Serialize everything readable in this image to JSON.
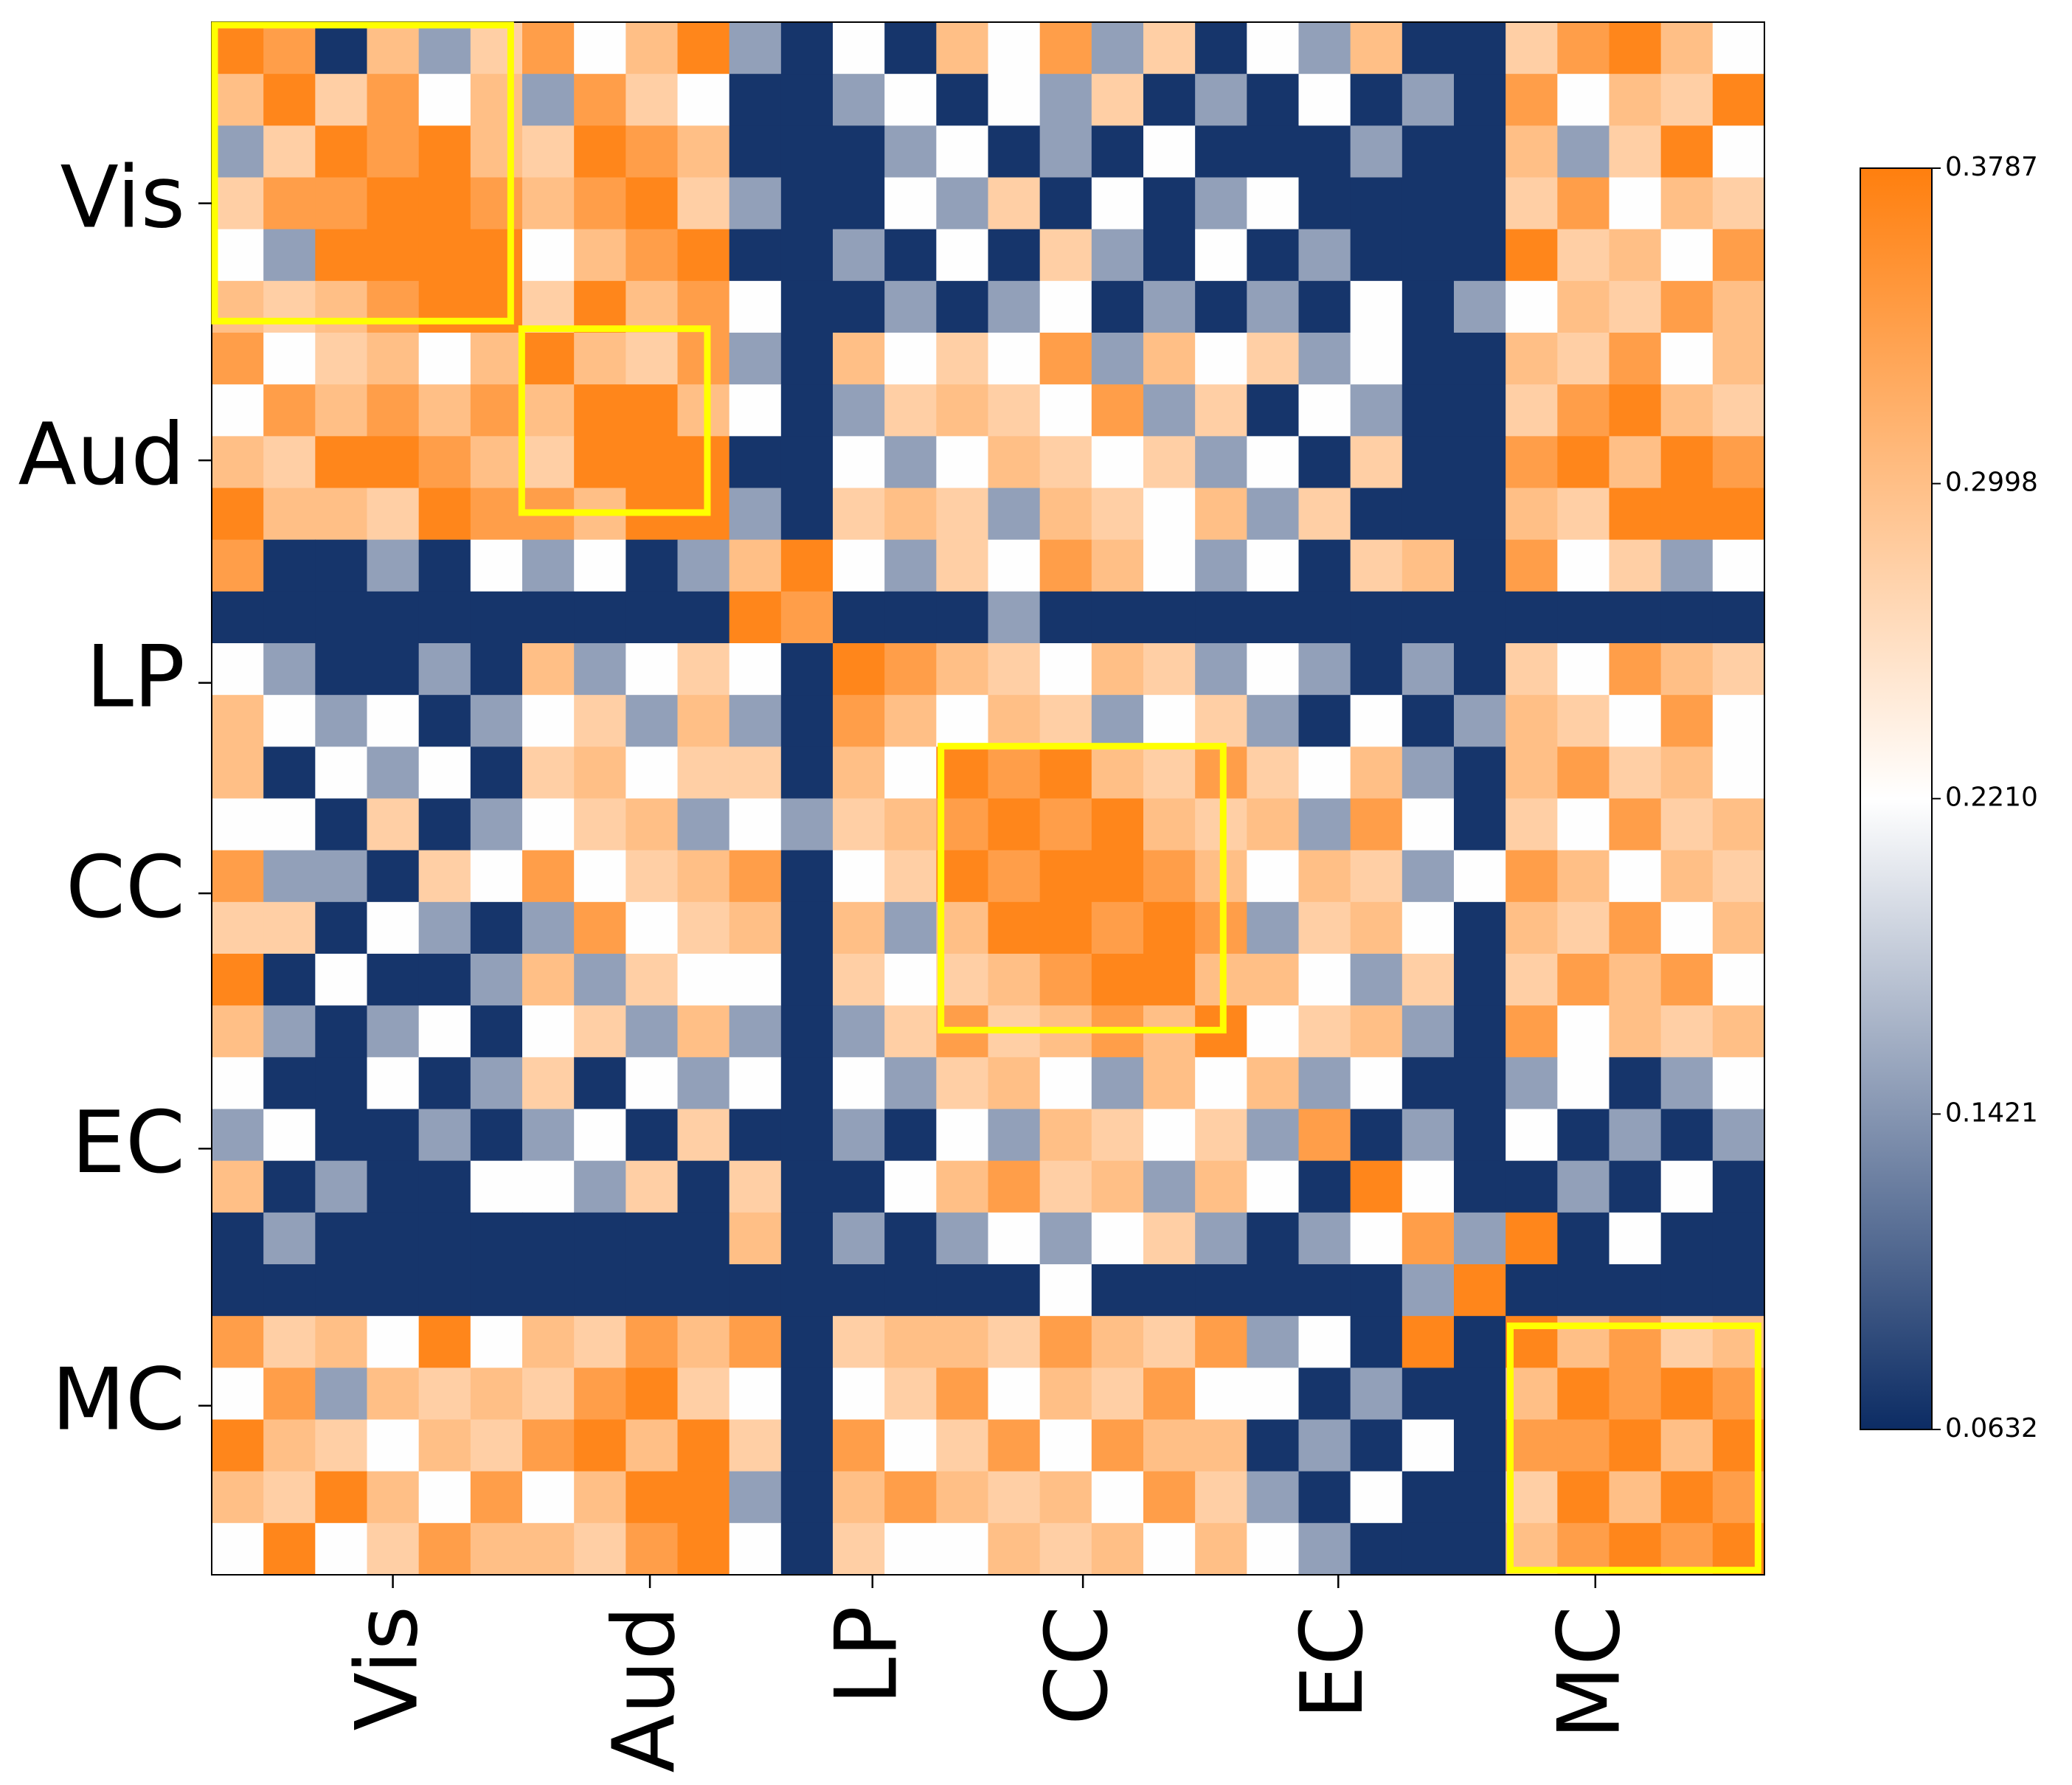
{
  "chart_data": {
    "type": "heatmap",
    "xlim": [
      0,
      90
    ],
    "ylim": [
      0,
      90
    ],
    "xticks": [
      {
        "value": 10.5,
        "label": "Vis"
      },
      {
        "value": 25.4,
        "label": "Aud"
      },
      {
        "value": 38.3,
        "label": "LP"
      },
      {
        "value": 50.5,
        "label": "CC"
      },
      {
        "value": 65.3,
        "label": "EC"
      },
      {
        "value": 80.2,
        "label": "MC"
      }
    ],
    "yticks": [
      {
        "value": 10.5,
        "label": "Vis"
      },
      {
        "value": 25.4,
        "label": "Aud"
      },
      {
        "value": 38.3,
        "label": "LP"
      },
      {
        "value": 50.5,
        "label": "CC"
      },
      {
        "value": 65.3,
        "label": "EC"
      },
      {
        "value": 80.2,
        "label": "MC"
      }
    ],
    "colorbar": {
      "lim": [
        0.0632,
        0.3787
      ],
      "ticks": [
        0.0632,
        0.1421,
        {
          "value": 0.221,
          "label": "0.2210"
        },
        0.2998,
        0.3787
      ],
      "colors": [
        "#0c2c64",
        "#ffffff",
        "#ff7f0e"
      ]
    },
    "box_color": "#ffff00",
    "boxes": [
      {
        "x": [
          0,
          17.5
        ],
        "y": [
          0,
          17.5
        ]
      },
      {
        "x": [
          17.8,
          28.9
        ],
        "y": [
          17.6,
          28.6
        ]
      },
      {
        "x": [
          42.1,
          58.8
        ],
        "y": [
          41.8,
          58.6
        ]
      },
      {
        "x": [
          75.1,
          89.8
        ],
        "y": [
          75.4,
          89.9
        ]
      }
    ],
    "z": [
      [
        0.37,
        0.34,
        0.07,
        0.3,
        0.15,
        0.28,
        0.34,
        0.22,
        0.3,
        0.37,
        0.15,
        0.07,
        0.22,
        0.07,
        0.3,
        0.22,
        0.34,
        0.15,
        0.28,
        0.07,
        0.22,
        0.15,
        0.3,
        0.07,
        0.07,
        0.28,
        0.34,
        0.37,
        0.3,
        0.22
      ],
      [
        0.3,
        0.37,
        0.28,
        0.34,
        0.22,
        0.3,
        0.15,
        0.34,
        0.28,
        0.22,
        0.07,
        0.07,
        0.15,
        0.22,
        0.07,
        0.22,
        0.15,
        0.28,
        0.07,
        0.15,
        0.07,
        0.22,
        0.07,
        0.15,
        0.07,
        0.34,
        0.22,
        0.3,
        0.28,
        0.37
      ],
      [
        0.15,
        0.28,
        0.37,
        0.34,
        0.37,
        0.3,
        0.28,
        0.37,
        0.34,
        0.3,
        0.07,
        0.07,
        0.07,
        0.15,
        0.22,
        0.07,
        0.15,
        0.07,
        0.22,
        0.07,
        0.07,
        0.07,
        0.15,
        0.07,
        0.07,
        0.3,
        0.15,
        0.28,
        0.37,
        0.22
      ],
      [
        0.28,
        0.34,
        0.34,
        0.37,
        0.37,
        0.34,
        0.3,
        0.34,
        0.37,
        0.28,
        0.15,
        0.07,
        0.07,
        0.22,
        0.15,
        0.28,
        0.07,
        0.22,
        0.07,
        0.15,
        0.22,
        0.07,
        0.07,
        0.07,
        0.07,
        0.28,
        0.34,
        0.22,
        0.3,
        0.28
      ],
      [
        0.22,
        0.15,
        0.37,
        0.37,
        0.37,
        0.37,
        0.22,
        0.3,
        0.34,
        0.37,
        0.07,
        0.07,
        0.15,
        0.07,
        0.22,
        0.07,
        0.28,
        0.15,
        0.07,
        0.22,
        0.07,
        0.15,
        0.07,
        0.07,
        0.07,
        0.37,
        0.28,
        0.3,
        0.22,
        0.34
      ],
      [
        0.3,
        0.28,
        0.3,
        0.34,
        0.37,
        0.37,
        0.28,
        0.37,
        0.3,
        0.34,
        0.22,
        0.07,
        0.07,
        0.15,
        0.07,
        0.15,
        0.22,
        0.07,
        0.15,
        0.07,
        0.15,
        0.07,
        0.22,
        0.07,
        0.15,
        0.22,
        0.3,
        0.28,
        0.34,
        0.3
      ],
      [
        0.34,
        0.22,
        0.28,
        0.3,
        0.22,
        0.3,
        0.37,
        0.3,
        0.28,
        0.34,
        0.15,
        0.07,
        0.3,
        0.22,
        0.28,
        0.22,
        0.34,
        0.15,
        0.3,
        0.22,
        0.28,
        0.15,
        0.22,
        0.07,
        0.07,
        0.3,
        0.28,
        0.34,
        0.22,
        0.3
      ],
      [
        0.22,
        0.34,
        0.3,
        0.34,
        0.3,
        0.34,
        0.3,
        0.37,
        0.37,
        0.3,
        0.22,
        0.07,
        0.15,
        0.28,
        0.3,
        0.28,
        0.22,
        0.34,
        0.15,
        0.28,
        0.07,
        0.22,
        0.15,
        0.07,
        0.07,
        0.28,
        0.34,
        0.37,
        0.3,
        0.28
      ],
      [
        0.3,
        0.28,
        0.37,
        0.37,
        0.34,
        0.3,
        0.28,
        0.37,
        0.37,
        0.37,
        0.07,
        0.07,
        0.22,
        0.15,
        0.22,
        0.3,
        0.28,
        0.22,
        0.28,
        0.15,
        0.22,
        0.07,
        0.28,
        0.07,
        0.07,
        0.34,
        0.37,
        0.3,
        0.37,
        0.34
      ],
      [
        0.37,
        0.3,
        0.3,
        0.28,
        0.37,
        0.34,
        0.34,
        0.3,
        0.37,
        0.37,
        0.15,
        0.07,
        0.28,
        0.3,
        0.28,
        0.15,
        0.3,
        0.28,
        0.22,
        0.3,
        0.15,
        0.28,
        0.07,
        0.07,
        0.07,
        0.3,
        0.28,
        0.37,
        0.37,
        0.37
      ],
      [
        0.34,
        0.07,
        0.07,
        0.15,
        0.07,
        0.22,
        0.15,
        0.22,
        0.07,
        0.15,
        0.3,
        0.37,
        0.22,
        0.15,
        0.28,
        0.22,
        0.34,
        0.3,
        0.22,
        0.15,
        0.22,
        0.07,
        0.28,
        0.3,
        0.07,
        0.34,
        0.22,
        0.28,
        0.15,
        0.22
      ],
      [
        0.07,
        0.07,
        0.07,
        0.07,
        0.07,
        0.07,
        0.07,
        0.07,
        0.07,
        0.07,
        0.37,
        0.34,
        0.07,
        0.07,
        0.07,
        0.15,
        0.07,
        0.07,
        0.07,
        0.07,
        0.07,
        0.07,
        0.07,
        0.07,
        0.07,
        0.07,
        0.07,
        0.07,
        0.07,
        0.07
      ],
      [
        0.22,
        0.15,
        0.07,
        0.07,
        0.15,
        0.07,
        0.3,
        0.15,
        0.22,
        0.28,
        0.22,
        0.07,
        0.37,
        0.34,
        0.3,
        0.28,
        0.22,
        0.3,
        0.28,
        0.15,
        0.22,
        0.15,
        0.07,
        0.15,
        0.07,
        0.28,
        0.22,
        0.34,
        0.3,
        0.28
      ],
      [
        0.3,
        0.22,
        0.15,
        0.22,
        0.07,
        0.15,
        0.22,
        0.28,
        0.15,
        0.3,
        0.15,
        0.07,
        0.34,
        0.3,
        0.22,
        0.3,
        0.28,
        0.15,
        0.22,
        0.28,
        0.15,
        0.07,
        0.22,
        0.07,
        0.15,
        0.3,
        0.28,
        0.22,
        0.34,
        0.22
      ],
      [
        0.3,
        0.07,
        0.22,
        0.15,
        0.22,
        0.07,
        0.28,
        0.3,
        0.22,
        0.28,
        0.28,
        0.07,
        0.3,
        0.22,
        0.37,
        0.34,
        0.37,
        0.3,
        0.28,
        0.34,
        0.28,
        0.22,
        0.3,
        0.15,
        0.07,
        0.3,
        0.34,
        0.28,
        0.3,
        0.22
      ],
      [
        0.22,
        0.22,
        0.07,
        0.28,
        0.07,
        0.15,
        0.22,
        0.28,
        0.3,
        0.15,
        0.22,
        0.15,
        0.28,
        0.3,
        0.34,
        0.37,
        0.34,
        0.37,
        0.3,
        0.28,
        0.3,
        0.15,
        0.34,
        0.22,
        0.07,
        0.28,
        0.22,
        0.34,
        0.28,
        0.3
      ],
      [
        0.34,
        0.15,
        0.15,
        0.07,
        0.28,
        0.22,
        0.34,
        0.22,
        0.28,
        0.3,
        0.34,
        0.07,
        0.22,
        0.28,
        0.37,
        0.34,
        0.37,
        0.37,
        0.34,
        0.3,
        0.22,
        0.3,
        0.28,
        0.15,
        0.22,
        0.34,
        0.3,
        0.22,
        0.3,
        0.28
      ],
      [
        0.28,
        0.28,
        0.07,
        0.22,
        0.15,
        0.07,
        0.15,
        0.34,
        0.22,
        0.28,
        0.3,
        0.07,
        0.3,
        0.15,
        0.3,
        0.37,
        0.37,
        0.34,
        0.37,
        0.34,
        0.15,
        0.28,
        0.3,
        0.22,
        0.07,
        0.3,
        0.28,
        0.34,
        0.22,
        0.3
      ],
      [
        0.37,
        0.07,
        0.22,
        0.07,
        0.07,
        0.15,
        0.3,
        0.15,
        0.28,
        0.22,
        0.22,
        0.07,
        0.28,
        0.22,
        0.28,
        0.3,
        0.34,
        0.37,
        0.37,
        0.3,
        0.3,
        0.22,
        0.15,
        0.28,
        0.07,
        0.28,
        0.34,
        0.3,
        0.34,
        0.22
      ],
      [
        0.3,
        0.15,
        0.07,
        0.15,
        0.22,
        0.07,
        0.22,
        0.28,
        0.15,
        0.3,
        0.15,
        0.07,
        0.15,
        0.28,
        0.34,
        0.28,
        0.3,
        0.34,
        0.3,
        0.37,
        0.22,
        0.28,
        0.3,
        0.15,
        0.07,
        0.34,
        0.22,
        0.3,
        0.28,
        0.3
      ],
      [
        0.22,
        0.07,
        0.07,
        0.22,
        0.07,
        0.15,
        0.28,
        0.07,
        0.22,
        0.15,
        0.22,
        0.07,
        0.22,
        0.15,
        0.28,
        0.3,
        0.22,
        0.15,
        0.3,
        0.22,
        0.3,
        0.15,
        0.22,
        0.07,
        0.07,
        0.15,
        0.22,
        0.07,
        0.15,
        0.22
      ],
      [
        0.15,
        0.22,
        0.07,
        0.07,
        0.15,
        0.07,
        0.15,
        0.22,
        0.07,
        0.28,
        0.07,
        0.07,
        0.15,
        0.07,
        0.22,
        0.15,
        0.3,
        0.28,
        0.22,
        0.28,
        0.15,
        0.34,
        0.07,
        0.15,
        0.07,
        0.22,
        0.07,
        0.15,
        0.07,
        0.15
      ],
      [
        0.3,
        0.07,
        0.15,
        0.07,
        0.07,
        0.22,
        0.22,
        0.15,
        0.28,
        0.07,
        0.28,
        0.07,
        0.07,
        0.22,
        0.3,
        0.34,
        0.28,
        0.3,
        0.15,
        0.3,
        0.22,
        0.07,
        0.37,
        0.22,
        0.07,
        0.07,
        0.15,
        0.07,
        0.22,
        0.07
      ],
      [
        0.07,
        0.15,
        0.07,
        0.07,
        0.07,
        0.07,
        0.07,
        0.07,
        0.07,
        0.07,
        0.3,
        0.07,
        0.15,
        0.07,
        0.15,
        0.22,
        0.15,
        0.22,
        0.28,
        0.15,
        0.07,
        0.15,
        0.22,
        0.34,
        0.15,
        0.37,
        0.07,
        0.22,
        0.07,
        0.07
      ],
      [
        0.07,
        0.07,
        0.07,
        0.07,
        0.07,
        0.07,
        0.07,
        0.07,
        0.07,
        0.07,
        0.07,
        0.07,
        0.07,
        0.07,
        0.07,
        0.07,
        0.22,
        0.07,
        0.07,
        0.07,
        0.07,
        0.07,
        0.07,
        0.15,
        0.37,
        0.07,
        0.07,
        0.07,
        0.07,
        0.07
      ],
      [
        0.34,
        0.28,
        0.3,
        0.22,
        0.37,
        0.22,
        0.3,
        0.28,
        0.34,
        0.3,
        0.34,
        0.07,
        0.28,
        0.3,
        0.3,
        0.28,
        0.34,
        0.3,
        0.28,
        0.34,
        0.15,
        0.22,
        0.07,
        0.37,
        0.07,
        0.37,
        0.3,
        0.34,
        0.28,
        0.3
      ],
      [
        0.22,
        0.34,
        0.15,
        0.3,
        0.28,
        0.3,
        0.28,
        0.34,
        0.37,
        0.28,
        0.22,
        0.07,
        0.22,
        0.28,
        0.34,
        0.22,
        0.3,
        0.28,
        0.34,
        0.22,
        0.22,
        0.07,
        0.15,
        0.07,
        0.07,
        0.3,
        0.37,
        0.34,
        0.37,
        0.34
      ],
      [
        0.37,
        0.3,
        0.28,
        0.22,
        0.3,
        0.28,
        0.34,
        0.37,
        0.3,
        0.37,
        0.28,
        0.07,
        0.34,
        0.22,
        0.28,
        0.34,
        0.22,
        0.34,
        0.3,
        0.3,
        0.07,
        0.15,
        0.07,
        0.22,
        0.07,
        0.34,
        0.34,
        0.37,
        0.3,
        0.37
      ],
      [
        0.3,
        0.28,
        0.37,
        0.3,
        0.22,
        0.34,
        0.22,
        0.3,
        0.37,
        0.37,
        0.15,
        0.07,
        0.3,
        0.34,
        0.3,
        0.28,
        0.3,
        0.22,
        0.34,
        0.28,
        0.15,
        0.07,
        0.22,
        0.07,
        0.07,
        0.28,
        0.37,
        0.3,
        0.37,
        0.34
      ],
      [
        0.22,
        0.37,
        0.22,
        0.28,
        0.34,
        0.3,
        0.3,
        0.28,
        0.34,
        0.37,
        0.22,
        0.07,
        0.28,
        0.22,
        0.22,
        0.3,
        0.28,
        0.3,
        0.22,
        0.3,
        0.22,
        0.15,
        0.07,
        0.07,
        0.07,
        0.3,
        0.34,
        0.37,
        0.34,
        0.37
      ]
    ]
  }
}
